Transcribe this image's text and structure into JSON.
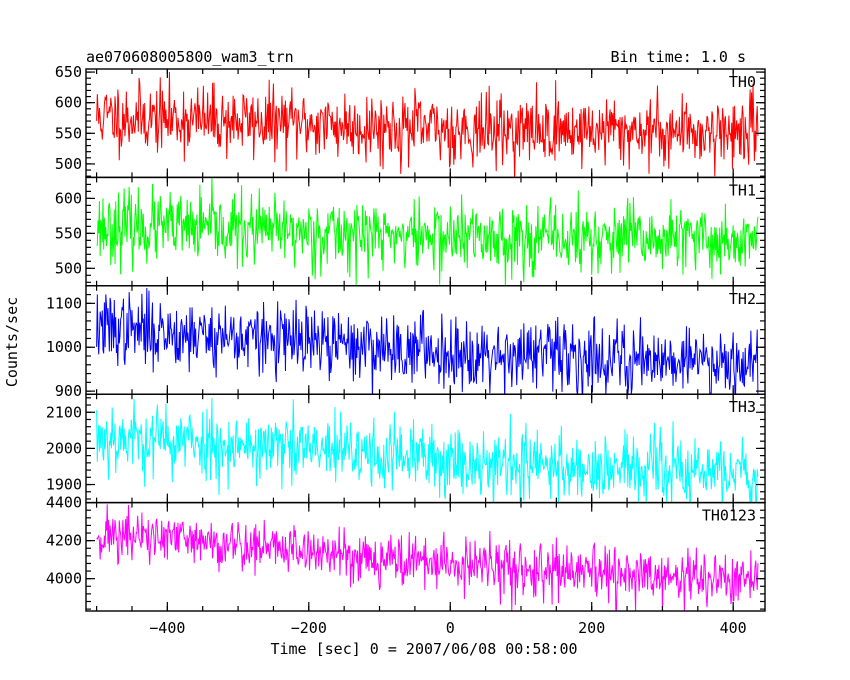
{
  "chart_data": {
    "type": "line",
    "title": "ae070608005800_wam3_trn",
    "bin_time": "Bin time: 1.0 s",
    "xlabel": "Time [sec] 0 = 2007/06/08 00:58:00",
    "ylabel": "Counts/sec",
    "xlim": [
      -515,
      445
    ],
    "x_range": [
      -500,
      435
    ],
    "xticks": [
      -400,
      -200,
      0,
      200,
      400
    ],
    "xtick_labels": [
      "−400",
      "−200",
      "0",
      "200",
      "400"
    ],
    "series": [
      {
        "name": "TH0",
        "color": "#ff0000",
        "ylim": [
          478,
          655
        ],
        "yticks": [
          500,
          550,
          600,
          650
        ],
        "ytick_labels": [
          "500",
          "550",
          "600",
          "650"
        ],
        "mean": [
          [
            -500,
            578
          ],
          [
            -300,
            570
          ],
          [
            0,
            556
          ],
          [
            200,
            555
          ],
          [
            435,
            553
          ]
        ],
        "noise": 28,
        "seed": 11
      },
      {
        "name": "TH1",
        "color": "#00ff00",
        "ylim": [
          475,
          630
        ],
        "yticks": [
          500,
          550,
          600
        ],
        "ytick_labels": [
          "500",
          "550",
          "600"
        ],
        "mean": [
          [
            -500,
            560
          ],
          [
            -300,
            555
          ],
          [
            0,
            545
          ],
          [
            200,
            542
          ],
          [
            435,
            540
          ]
        ],
        "noise": 25,
        "seed": 23
      },
      {
        "name": "TH2",
        "color": "#0000ff",
        "ylim": [
          893,
          1140
        ],
        "yticks": [
          900,
          1000,
          1100
        ],
        "ytick_labels": [
          "900",
          "1000",
          "1100"
        ],
        "mean": [
          [
            -500,
            1045
          ],
          [
            -400,
            1035
          ],
          [
            -200,
            1010
          ],
          [
            0,
            990
          ],
          [
            200,
            978
          ],
          [
            435,
            970
          ]
        ],
        "noise": 40,
        "seed": 37
      },
      {
        "name": "TH3",
        "color": "#00ffff",
        "ylim": [
          1850,
          2150
        ],
        "yticks": [
          1900,
          2000,
          2100
        ],
        "ytick_labels": [
          "1900",
          "2000",
          "2100"
        ],
        "mean": [
          [
            -500,
            2035
          ],
          [
            -300,
            2010
          ],
          [
            0,
            1968
          ],
          [
            200,
            1945
          ],
          [
            435,
            1930
          ]
        ],
        "noise": 50,
        "seed": 53
      },
      {
        "name": "TH0123",
        "color": "#ff00ff",
        "ylim": [
          3830,
          4400
        ],
        "yticks": [
          4000,
          4200,
          4400
        ],
        "ytick_labels": [
          "4000",
          "4200",
          "4400"
        ],
        "mean": [
          [
            -500,
            4235
          ],
          [
            -300,
            4180
          ],
          [
            0,
            4075
          ],
          [
            200,
            4020
          ],
          [
            435,
            3990
          ]
        ],
        "noise": 70,
        "seed": 71
      }
    ]
  }
}
